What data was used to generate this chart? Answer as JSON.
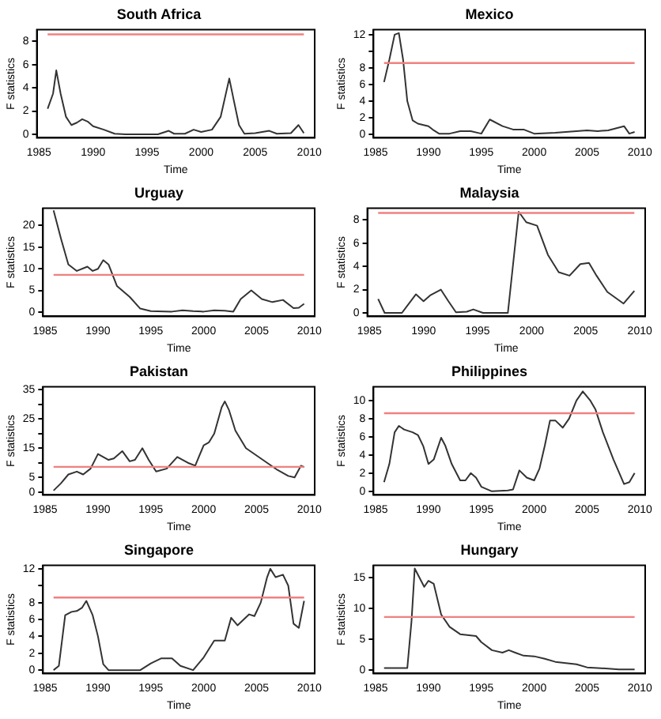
{
  "chart_data": [
    {
      "type": "line",
      "title": "South Africa",
      "xlabel": "Time",
      "ylabel": "F statistics",
      "color": "#333333",
      "xlim": [
        1984.8,
        2010.5
      ],
      "xticks": [
        1985,
        1990,
        1995,
        2000,
        2005,
        2010
      ],
      "ylim": [
        -0.3,
        9
      ],
      "yticks": [
        0,
        2,
        4,
        6,
        8
      ],
      "grid": false,
      "ref_lines": [
        {
          "axis": "y",
          "value": 8.6,
          "color": "#f08080"
        }
      ],
      "x": [
        1985.8,
        1986.3,
        1986.6,
        1987,
        1987.5,
        1988,
        1988.5,
        1989,
        1989.5,
        1990,
        1991,
        1992,
        1993,
        1996,
        1997,
        1997.5,
        1998.5,
        1999.3,
        2000,
        2001,
        2001.8,
        2002.6,
        2003,
        2003.5,
        2004,
        2005,
        2006.3,
        2007,
        2008.3,
        2009,
        2009.5
      ],
      "values": [
        2.2,
        3.5,
        5.5,
        3.5,
        1.5,
        0.8,
        1.0,
        1.3,
        1.1,
        0.7,
        0.4,
        0.05,
        0,
        0,
        0.3,
        0.05,
        0.05,
        0.4,
        0.2,
        0.4,
        1.5,
        4.8,
        3,
        0.8,
        0.05,
        0.1,
        0.3,
        0.05,
        0.1,
        0.8,
        0.1
      ]
    },
    {
      "type": "line",
      "title": "Mexico",
      "xlabel": "Time",
      "ylabel": "F statistics",
      "color": "#333333",
      "xlim": [
        1984.8,
        2010.5
      ],
      "xticks": [
        1985,
        1990,
        1995,
        2000,
        2005,
        2010
      ],
      "ylim": [
        -0.4,
        12.6
      ],
      "yticks": [
        0,
        2,
        4,
        6,
        8,
        {
          "value": 10,
          "label": null
        },
        12
      ],
      "grid": false,
      "ref_lines": [
        {
          "axis": "y",
          "value": 8.6,
          "color": "#f08080"
        }
      ],
      "x": [
        1985.8,
        1986.3,
        1986.8,
        1987.2,
        1987.6,
        1988,
        1988.5,
        1989,
        1990,
        1990.5,
        1991,
        1992,
        1993,
        1994,
        1995,
        1995.8,
        1997,
        1998,
        1999,
        2000,
        2002,
        2004,
        2005,
        2006,
        2007,
        2008.5,
        2009,
        2009.5
      ],
      "values": [
        6.3,
        9,
        12,
        12.2,
        9,
        4,
        1.7,
        1.3,
        1,
        0.5,
        0.1,
        0.1,
        0.4,
        0.4,
        0.1,
        1.8,
        1,
        0.6,
        0.6,
        0.1,
        0.2,
        0.4,
        0.5,
        0.4,
        0.5,
        1.0,
        0.1,
        0.3
      ]
    },
    {
      "type": "line",
      "title": "Urguay",
      "xlabel": "Time",
      "ylabel": "F statistics",
      "color": "#333333",
      "xlim": [
        1984.8,
        2010.5
      ],
      "xticks": [
        1985,
        1990,
        1995,
        2000,
        2005,
        2010
      ],
      "ylim": [
        -1,
        24
      ],
      "yticks": [
        0,
        5,
        10,
        15,
        20
      ],
      "grid": false,
      "ref_lines": [
        {
          "axis": "y",
          "value": 8.6,
          "color": "#f08080"
        }
      ],
      "x": [
        1985.8,
        1986.5,
        1987.2,
        1988,
        1989,
        1989.5,
        1990,
        1990.5,
        1991,
        1991.8,
        1993,
        1994,
        1995,
        1997,
        1998,
        1999,
        2000,
        2001,
        2002,
        2002.8,
        2003.5,
        2004.5,
        2005.5,
        2006.5,
        2007.5,
        2008.5,
        2009,
        2009.5
      ],
      "values": [
        23.5,
        17,
        11,
        9.5,
        10.5,
        9.5,
        10,
        12,
        11,
        6,
        3.5,
        0.8,
        0.2,
        0.1,
        0.4,
        0.2,
        0.1,
        0.4,
        0.3,
        0.1,
        3,
        5,
        3,
        2.3,
        2.8,
        0.9,
        1,
        1.9
      ]
    },
    {
      "type": "line",
      "title": "Malaysia",
      "xlabel": "Time",
      "ylabel": "F statistics",
      "color": "#333333",
      "xlim": [
        1984.8,
        2010.5
      ],
      "xticks": [
        1985,
        1990,
        1995,
        2000,
        2005,
        2010
      ],
      "ylim": [
        -0.3,
        9
      ],
      "yticks": [
        0,
        2,
        4,
        6,
        8
      ],
      "grid": false,
      "ref_lines": [
        {
          "axis": "y",
          "value": 8.6,
          "color": "#f08080"
        }
      ],
      "x": [
        1985.8,
        1986.4,
        1988,
        1989.3,
        1990,
        1990.6,
        1991.6,
        1992.3,
        1993,
        1994,
        1994.6,
        1995.5,
        1997.8,
        1998.8,
        1999.5,
        2000.5,
        2001.5,
        2002.5,
        2003.5,
        2004.5,
        2005.3,
        2006,
        2007,
        2008.5,
        2009.5
      ],
      "values": [
        1.2,
        0,
        0,
        1.6,
        1,
        1.5,
        2.0,
        1,
        0.05,
        0.1,
        0.3,
        0,
        0,
        8.7,
        7.8,
        7.5,
        5,
        3.5,
        3.2,
        4.2,
        4.3,
        3.2,
        1.8,
        0.8,
        1.9
      ]
    },
    {
      "type": "line",
      "title": "Pakistan",
      "xlabel": "Time",
      "ylabel": "F statistics",
      "color": "#333333",
      "xlim": [
        1984.8,
        2010.5
      ],
      "xticks": [
        1985,
        1990,
        1995,
        2000,
        2005,
        2010
      ],
      "ylim": [
        -1,
        36
      ],
      "yticks": [
        0,
        5,
        {
          "value": 10,
          "label": null
        },
        15,
        {
          "value": 20,
          "label": null
        },
        25,
        {
          "value": 30,
          "label": null
        },
        35
      ],
      "grid": false,
      "ref_lines": [
        {
          "axis": "y",
          "value": 8.6,
          "color": "#f08080"
        }
      ],
      "x": [
        1985.8,
        1986.5,
        1987.2,
        1988,
        1988.6,
        1989.3,
        1990,
        1990.5,
        1991,
        1991.5,
        1992.3,
        1993,
        1993.5,
        1994.2,
        1994.8,
        1995.5,
        1996.5,
        1997.5,
        1998.5,
        1999.2,
        2000,
        2000.5,
        2001,
        2001.7,
        2002,
        2002.4,
        2003,
        2004,
        2005,
        2006,
        2007,
        2008,
        2008.6,
        2009.2,
        2009.5
      ],
      "values": [
        0.5,
        3,
        6,
        7,
        6,
        8,
        13,
        12,
        11,
        11.5,
        14,
        10.5,
        11,
        15,
        11,
        7,
        8,
        12,
        10,
        9,
        16,
        17,
        20,
        29,
        31,
        28,
        21,
        15,
        12.5,
        10,
        7.5,
        5.5,
        5,
        9,
        8.5
      ]
    },
    {
      "type": "line",
      "title": "Philippines",
      "xlabel": "Time",
      "ylabel": "F statistics",
      "color": "#333333",
      "xlim": [
        1984.8,
        2010.5
      ],
      "xticks": [
        1985,
        1990,
        1995,
        2000,
        2005,
        2010
      ],
      "ylim": [
        -0.4,
        11.5
      ],
      "yticks": [
        0,
        2,
        4,
        6,
        8,
        10
      ],
      "grid": false,
      "ref_lines": [
        {
          "axis": "y",
          "value": 8.6,
          "color": "#f08080"
        }
      ],
      "x": [
        1985.8,
        1986.3,
        1986.8,
        1987.2,
        1987.7,
        1988.5,
        1989,
        1989.5,
        1990,
        1990.5,
        1991.2,
        1991.6,
        1992.2,
        1993,
        1993.5,
        1994,
        1994.5,
        1995,
        1996,
        1997.5,
        1998,
        1998.6,
        1999.3,
        2000,
        2000.5,
        2001,
        2001.5,
        2002,
        2002.7,
        2003.3,
        2004,
        2004.6,
        2005.3,
        2005.8,
        2006.5,
        2007.5,
        2008.5,
        2009,
        2009.5
      ],
      "values": [
        1,
        3,
        6.5,
        7.2,
        6.8,
        6.5,
        6.2,
        5,
        3,
        3.5,
        5.9,
        5,
        3,
        1.2,
        1.2,
        2,
        1.5,
        0.5,
        0,
        0.1,
        0.2,
        2.3,
        1.5,
        1.2,
        2.5,
        5,
        7.8,
        7.8,
        7,
        8,
        10,
        11,
        10,
        9,
        6.5,
        3.5,
        0.8,
        1,
        2
      ]
    },
    {
      "type": "line",
      "title": "Singapore",
      "xlabel": "Time",
      "ylabel": "F statistics",
      "color": "#333333",
      "xlim": [
        1984.8,
        2010.5
      ],
      "xticks": [
        1985,
        1990,
        1995,
        2000,
        2005,
        2010
      ],
      "ylim": [
        -0.4,
        12.4
      ],
      "yticks": [
        0,
        2,
        4,
        6,
        8,
        {
          "value": 10,
          "label": null
        },
        12
      ],
      "grid": false,
      "ref_lines": [
        {
          "axis": "y",
          "value": 8.6,
          "color": "#f08080"
        }
      ],
      "x": [
        1985.8,
        1986.3,
        1986.9,
        1987.5,
        1988,
        1988.5,
        1988.9,
        1989.5,
        1990,
        1990.5,
        1991,
        1994,
        1995,
        1996,
        1997,
        1997.8,
        1999,
        2000,
        2001,
        2002,
        2002.6,
        2003.2,
        2004.3,
        2004.8,
        2005.4,
        2006,
        2006.3,
        2006.8,
        2007.5,
        2008,
        2008.5,
        2009,
        2009.5
      ],
      "values": [
        0,
        0.5,
        6.5,
        6.9,
        7,
        7.4,
        8.2,
        6.5,
        4,
        0.7,
        0,
        0,
        0.8,
        1.4,
        1.4,
        0.5,
        0,
        1.5,
        3.5,
        3.5,
        6.2,
        5.3,
        6.6,
        6.4,
        8,
        11,
        12,
        11,
        11.3,
        10,
        5.5,
        5,
        8.2
      ]
    },
    {
      "type": "line",
      "title": "Hungary",
      "xlabel": "Time",
      "ylabel": "F statistics",
      "color": "#333333",
      "xlim": [
        1984.8,
        2010.5
      ],
      "xticks": [
        1985,
        1990,
        1995,
        2000,
        2005,
        2010
      ],
      "ylim": [
        -0.6,
        17
      ],
      "yticks": [
        0,
        5,
        10,
        15
      ],
      "grid": false,
      "ref_lines": [
        {
          "axis": "y",
          "value": 8.6,
          "color": "#f08080"
        }
      ],
      "x": [
        1985.8,
        1988,
        1988.4,
        1988.7,
        1989,
        1989.6,
        1990,
        1990.5,
        1991.2,
        1992,
        1993,
        1994.5,
        1995,
        1996,
        1997,
        1997.6,
        1998.2,
        1999,
        2000,
        2001,
        2002,
        2003,
        2004,
        2005,
        2006,
        2007,
        2008,
        2009.5
      ],
      "values": [
        0.3,
        0.3,
        8,
        16.5,
        15.5,
        13.5,
        14.5,
        14,
        9,
        7,
        5.8,
        5.5,
        4.5,
        3.2,
        2.8,
        3.2,
        2.8,
        2.3,
        2.2,
        1.8,
        1.3,
        1.1,
        0.9,
        0.4,
        0.3,
        0.2,
        0.05,
        0.05
      ]
    }
  ]
}
